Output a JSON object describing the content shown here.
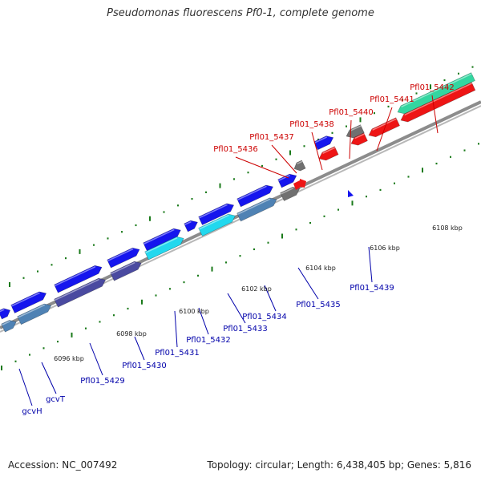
{
  "title": "Pseudomonas fluorescens Pf0-1, complete genome",
  "footer": {
    "accession": "Accession: NC_007492",
    "topology": "Topology: circular; Length: 6,438,405 bp; Genes: 5,816"
  },
  "colors": {
    "forward_gene": "#1515ee",
    "forward_gene_alt": "#4a4aa0",
    "reverse_gene": "#ee1515",
    "teal_gene": "#33d6a0",
    "cyan_gene": "#22d8ee",
    "steel_gene": "#4f82b4",
    "gray_gene": "#707070",
    "genome_line": "#909090",
    "tick": "#1a7a1a",
    "label_forward": "#0000aa",
    "label_reverse": "#cc0000"
  },
  "scale_labels": [
    "6096 kbp",
    "6098 kbp",
    "6100 kbp",
    "6102 kbp",
    "6104 kbp",
    "6106 kbp",
    "6108 kbp"
  ],
  "forward_labels": [
    "gcvH",
    "gcvT",
    "Pfl01_5429",
    "Pfl01_5430",
    "Pfl01_5431",
    "Pfl01_5432",
    "Pfl01_5433",
    "Pfl01_5434",
    "Pfl01_5435",
    "Pfl01_5439"
  ],
  "reverse_labels": [
    "Pfl01_5436",
    "Pfl01_5437",
    "Pfl01_5438",
    "Pfl01_5440",
    "Pfl01_5441",
    "Pfl01_5442"
  ]
}
